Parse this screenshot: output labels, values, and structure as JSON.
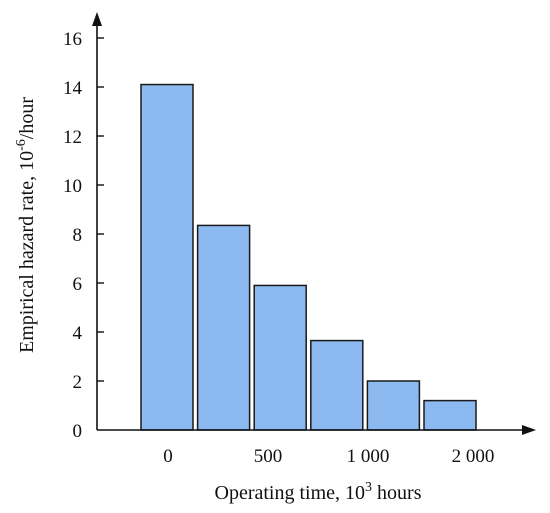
{
  "chart_data": {
    "type": "bar",
    "categories": [
      "",
      "",
      "",
      "",
      "",
      ""
    ],
    "values": [
      14.1,
      8.35,
      5.9,
      3.65,
      2.0,
      1.2
    ],
    "x_tick_labels": [
      "0",
      "500",
      "1 000",
      "2 000"
    ],
    "y_ticks": [
      "0",
      "2",
      "4",
      "6",
      "8",
      "10",
      "12",
      "14",
      "16"
    ],
    "ylim": [
      0,
      16
    ],
    "xlabel": "Operating time, 10",
    "xlabel_sup": "3",
    "xlabel_tail": " hours",
    "ylabel": "Empirical hazard rate, 10",
    "ylabel_sup": "-6",
    "ylabel_tail": "/hour",
    "title": "",
    "grid": false,
    "colors": {
      "bar_fill": "#8cb9ef",
      "bar_stroke": "#1a1a1a",
      "axis": "#111111"
    }
  }
}
